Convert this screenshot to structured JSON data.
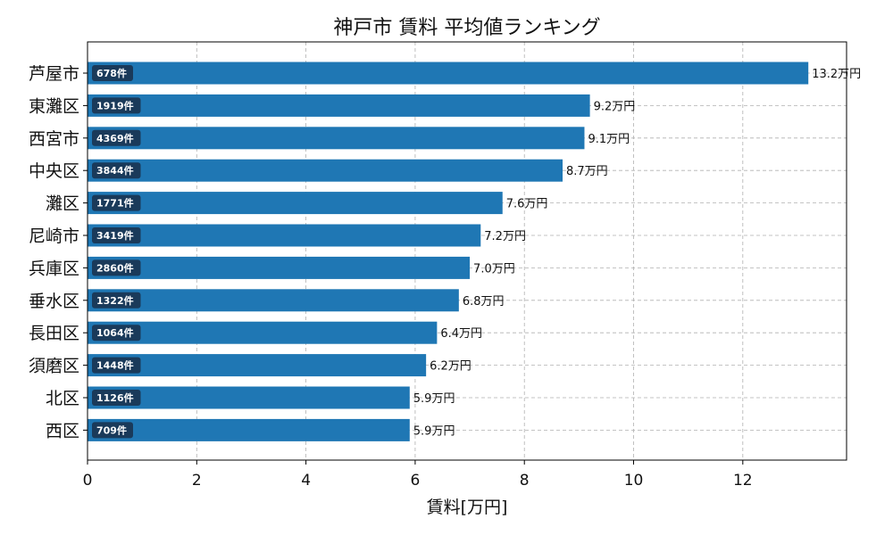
{
  "chart_data": {
    "type": "bar",
    "orientation": "horizontal",
    "title": "神戸市 賃料 平均値ランキング",
    "xlabel": "賃料[万円]",
    "ylabel": "",
    "xlim": [
      0,
      13.9
    ],
    "xticks": [
      0,
      2,
      4,
      6,
      8,
      10,
      12
    ],
    "grid": true,
    "bar_color": "#1f77b4",
    "badge_color": "#1a3a5a",
    "categories": [
      "芦屋市",
      "東灘区",
      "西宮市",
      "中央区",
      "灘区",
      "尼崎市",
      "兵庫区",
      "垂水区",
      "長田区",
      "須磨区",
      "北区",
      "西区"
    ],
    "values": [
      13.2,
      9.2,
      9.1,
      8.7,
      7.6,
      7.2,
      7.0,
      6.8,
      6.4,
      6.2,
      5.9,
      5.9
    ],
    "value_labels": [
      "13.2万円",
      "9.2万円",
      "9.1万円",
      "8.7万円",
      "7.6万円",
      "7.2万円",
      "7.0万円",
      "6.8万円",
      "6.4万円",
      "6.2万円",
      "5.9万円",
      "5.9万円"
    ],
    "counts": [
      "678件",
      "1919件",
      "4369件",
      "3844件",
      "1771件",
      "3419件",
      "2860件",
      "1322件",
      "1064件",
      "1448件",
      "1126件",
      "709件"
    ]
  }
}
